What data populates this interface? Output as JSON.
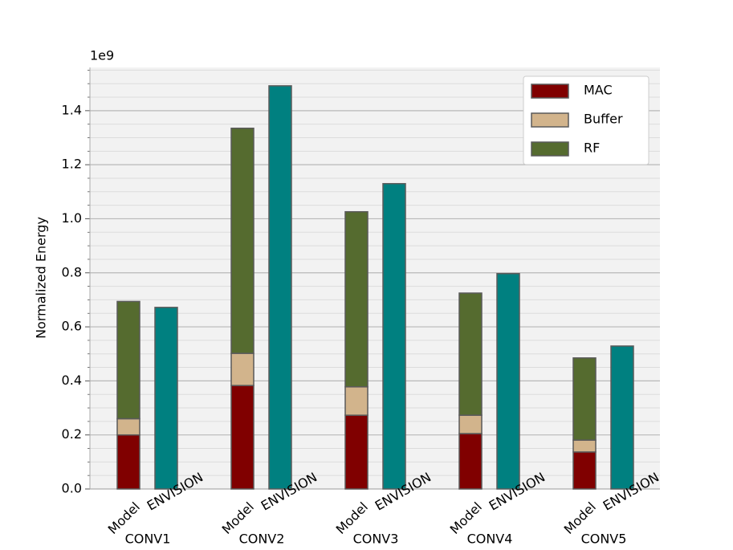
{
  "chart_data": {
    "type": "bar",
    "stacked": true,
    "y_axis_label": "Normalized Energy",
    "y_offset_label": "1e9",
    "categories": [
      "CONV1",
      "CONV2",
      "CONV3",
      "CONV4",
      "CONV5"
    ],
    "bar_labels": [
      "Model",
      "ENVISION"
    ],
    "series": [
      {
        "name": "MAC",
        "color": "#800000",
        "values": [
          0.2,
          0.383,
          0.273,
          0.205,
          0.137
        ]
      },
      {
        "name": "Buffer",
        "color": "#d2b48c",
        "values": [
          0.06,
          0.119,
          0.105,
          0.068,
          0.044
        ]
      },
      {
        "name": "RF",
        "color": "#556b2f",
        "values": [
          0.434,
          0.833,
          0.648,
          0.452,
          0.304
        ]
      }
    ],
    "comparison": {
      "color": "#008080",
      "values": [
        0.672,
        1.492,
        1.13,
        0.797,
        0.529
      ]
    },
    "ylim": [
      0,
      1.56
    ],
    "yticks": [
      {
        "value": 0,
        "label": "0.0"
      },
      0.2,
      0.4,
      0.6,
      0.8,
      {
        "value": 1,
        "label": "1.0"
      },
      1.2,
      1.4
    ],
    "yticks_minor": [
      0.05,
      0.1,
      0.15,
      0.25,
      0.3,
      0.35,
      0.45,
      0.5,
      0.55,
      0.65,
      0.7,
      0.75,
      0.85,
      0.9,
      0.95,
      1.05,
      1.1,
      1.15,
      1.25,
      1.3,
      1.35,
      1.45,
      1.5,
      1.55
    ],
    "grid": true,
    "legend": "upper right"
  }
}
